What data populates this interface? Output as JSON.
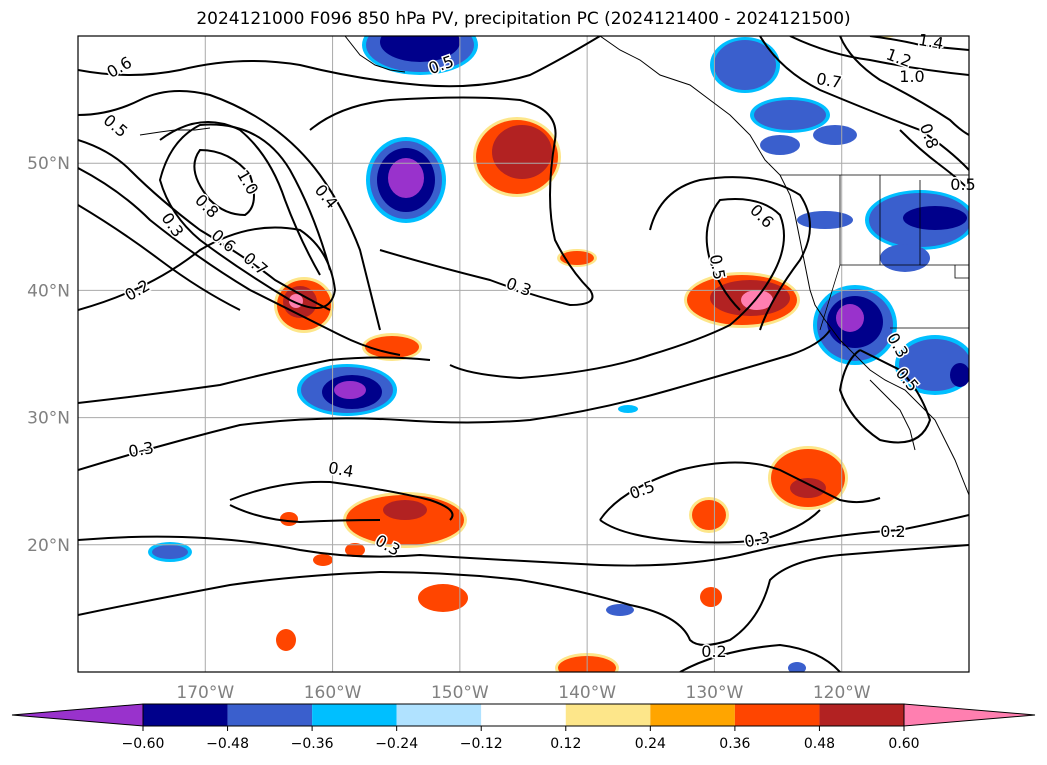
{
  "title": "2024121000 F096 850 hPa PV, precipitation PC (2024121400 - 2024121500)",
  "map": {
    "lon_range": [
      -180,
      -110
    ],
    "lat_range": [
      10,
      60
    ],
    "lon_ticks": [
      {
        "value": -170,
        "label": "170°W"
      },
      {
        "value": -160,
        "label": "160°W"
      },
      {
        "value": -150,
        "label": "150°W"
      },
      {
        "value": -140,
        "label": "140°W"
      },
      {
        "value": -130,
        "label": "130°W"
      },
      {
        "value": -120,
        "label": "120°W"
      }
    ],
    "lat_ticks": [
      {
        "value": 20,
        "label": "20°N"
      },
      {
        "value": 30,
        "label": "30°N"
      },
      {
        "value": 40,
        "label": "40°N"
      },
      {
        "value": 50,
        "label": "50°N"
      }
    ],
    "grid": true,
    "contour_labels": [
      "0.6",
      "0.5",
      "0.3",
      "0.2",
      "1.0",
      "0.8",
      "0.6",
      "0.7",
      "0.4",
      "0.5",
      "0.3",
      "0.3",
      "0.4",
      "0.5",
      "0.3",
      "0.2",
      "0.2",
      "0.6",
      "0.5",
      "0.7",
      "1.2",
      "1.0",
      "1.4",
      "0.8",
      "0.5",
      "0.3",
      "0.5",
      "0.3"
    ]
  },
  "colorbar": {
    "colors": [
      "#9932cc",
      "#00008b",
      "#3a5fcd",
      "#00bfff",
      "#b0e2ff",
      "#ffffff",
      "#fde68a",
      "#ffa500",
      "#ff4500",
      "#b22222",
      "#ff7fb0"
    ],
    "tick_labels": [
      "−0.60",
      "−0.48",
      "−0.36",
      "−0.24",
      "−0.12",
      "0.12",
      "0.24",
      "0.36",
      "0.48",
      "0.60"
    ]
  }
}
